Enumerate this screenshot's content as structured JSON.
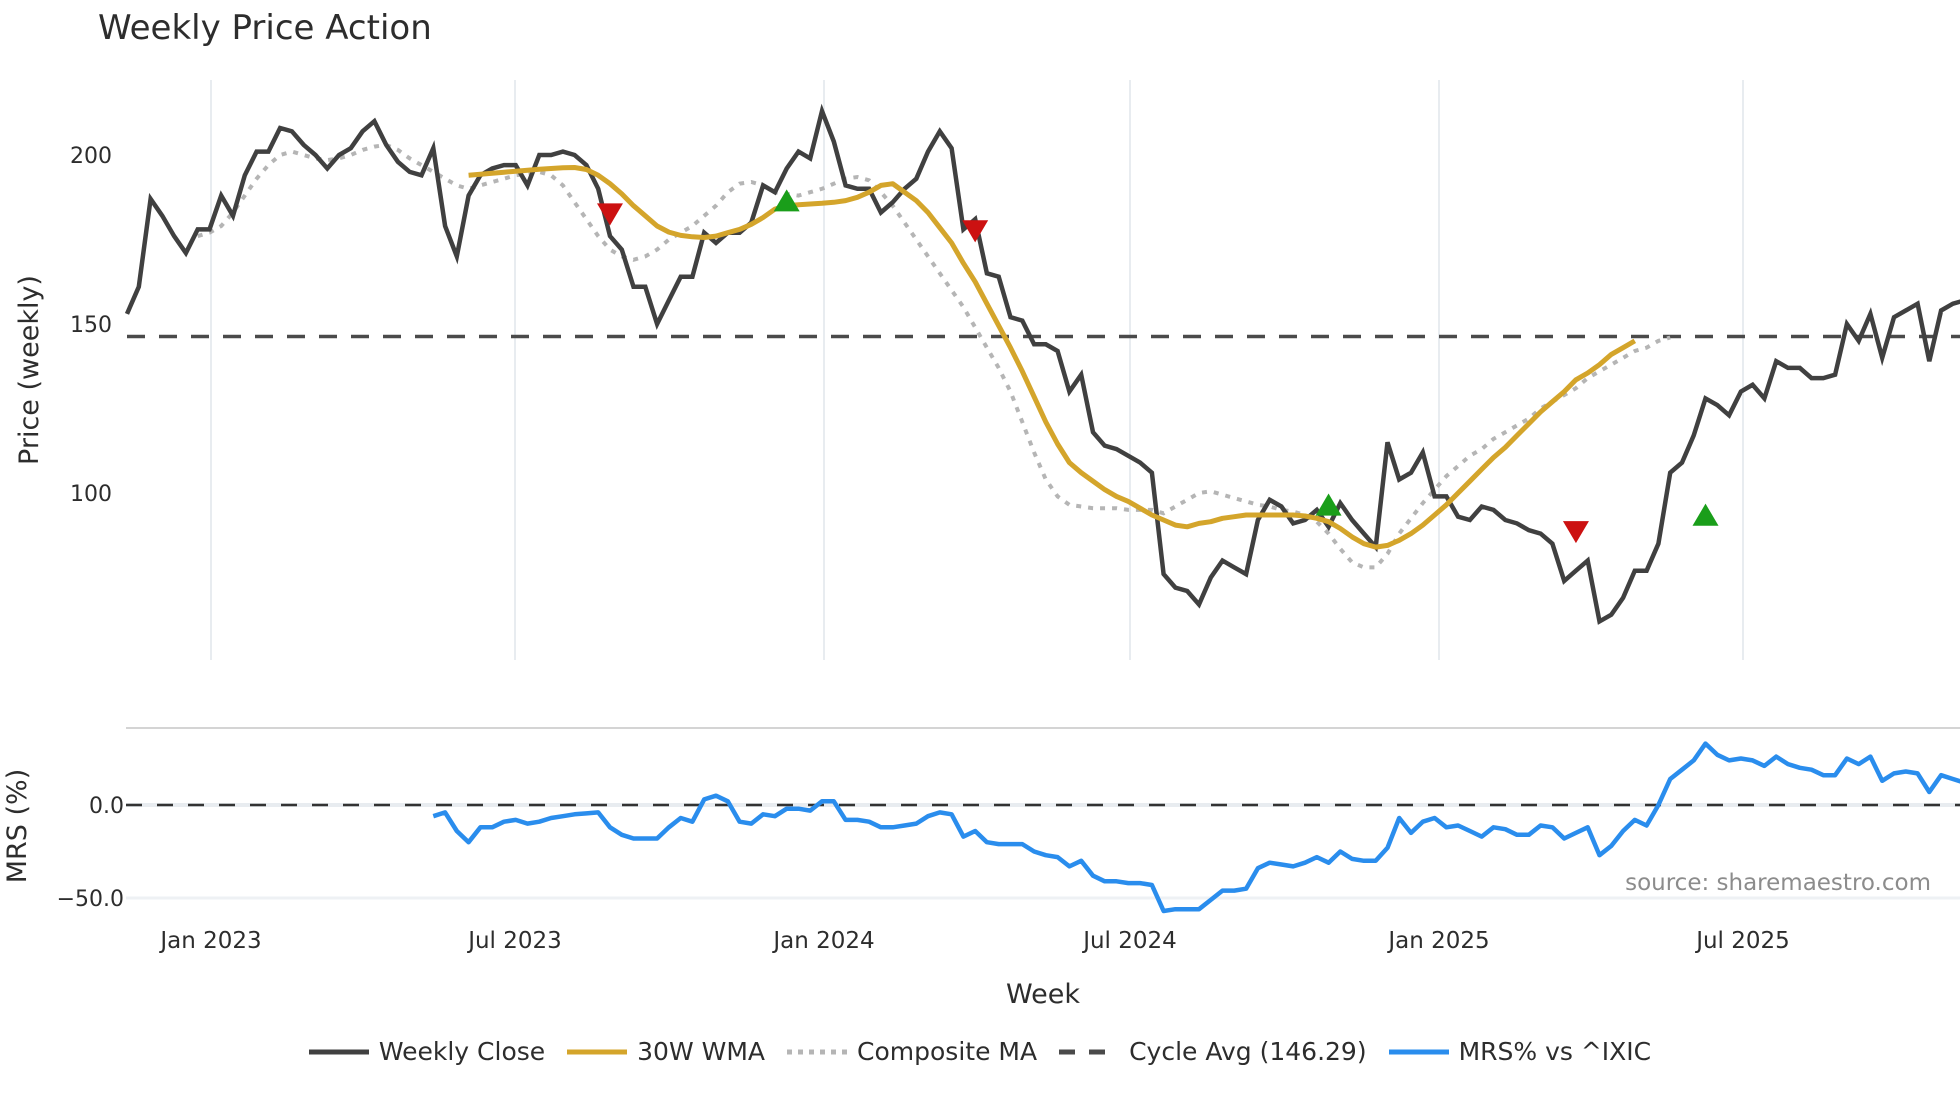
{
  "title": "Weekly Price Action",
  "source_note": "source: sharemaestro.com",
  "colors": {
    "weekly_close": "#404040",
    "wma30": "#d4a52b",
    "composite_ma": "#b5b5b5",
    "cycle_avg": "#4a4a4a",
    "mrs": "#2a8ded",
    "buy_marker": "#1a9e1a",
    "sell_marker": "#cc1111",
    "grid": "#e8ecf0"
  },
  "legend": [
    {
      "key": "weekly_close",
      "label": "Weekly Close",
      "style": "solid"
    },
    {
      "key": "wma30",
      "label": "30W WMA",
      "style": "solid"
    },
    {
      "key": "composite_ma",
      "label": "Composite MA",
      "style": "dotted"
    },
    {
      "key": "cycle_avg",
      "label": "Cycle Avg (146.29)",
      "style": "dashed"
    },
    {
      "key": "mrs",
      "label": "MRS% vs ^IXIC",
      "style": "solid"
    }
  ],
  "chart_data": [
    {
      "type": "line",
      "title": "Weekly Price Action",
      "xlabel": "Week",
      "ylabel": "Price (weekly)",
      "x_ticks": [
        "Jan 2023",
        "Jul 2023",
        "Jan 2024",
        "Jul 2024",
        "Jan 2025",
        "Jul 2025"
      ],
      "y_ticks": [
        100,
        150,
        200
      ],
      "ylim": [
        50,
        225
      ],
      "grid": true,
      "x_start": "2022-11-14",
      "x_step": "1 week",
      "cycle_avg": 146.29,
      "series": [
        {
          "name": "Weekly Close",
          "values": [
            153,
            161,
            187,
            182,
            176,
            171,
            178,
            178,
            188,
            182,
            194,
            201,
            201,
            208,
            207,
            203,
            200,
            196,
            200,
            202,
            207,
            210,
            203,
            198,
            195,
            194,
            202,
            179,
            170,
            188,
            194,
            196,
            197,
            197,
            191,
            200,
            200,
            201,
            200,
            197,
            190,
            176,
            172,
            161,
            161,
            150,
            157,
            164,
            164,
            177,
            174,
            177,
            177,
            180,
            191,
            189,
            196,
            201,
            199,
            213,
            204,
            191,
            190,
            190,
            183,
            186,
            190,
            193,
            201,
            207,
            202,
            178,
            181,
            165,
            164,
            152,
            151,
            144,
            144,
            142,
            130,
            135,
            118,
            114,
            113,
            111,
            109,
            106,
            76,
            72,
            71,
            67,
            75,
            80,
            78,
            76,
            92,
            98,
            96,
            91,
            92,
            95,
            90,
            97,
            92,
            88,
            84,
            115,
            104,
            106,
            112,
            99,
            99,
            93,
            92,
            96,
            95,
            92,
            91,
            89,
            88,
            85,
            74,
            77,
            80,
            62,
            64,
            69,
            77,
            77,
            85,
            106,
            109,
            117,
            128,
            126,
            123,
            130,
            132,
            128,
            139,
            137,
            137,
            134,
            134,
            135,
            150,
            145,
            153,
            140,
            152,
            154,
            156,
            139,
            154,
            156,
            157,
            152
          ]
        },
        {
          "name": "30W WMA",
          "start_index": 29,
          "values": [
            194,
            194.3,
            194.6,
            194.9,
            195.2,
            195.5,
            195.8,
            196,
            196.2,
            196.3,
            195.7,
            194,
            191.5,
            188.5,
            185,
            182,
            179,
            177.2,
            176.2,
            175.8,
            175.6,
            176,
            177,
            178,
            179.5,
            181.5,
            184,
            185,
            185.3,
            185.5,
            185.7,
            186,
            186.5,
            187.5,
            189,
            191,
            191.5,
            189,
            186.5,
            183,
            178.5,
            174,
            168,
            162.5,
            156,
            149.5,
            143,
            136,
            128.5,
            121,
            114.5,
            109,
            106,
            103.5,
            101,
            99,
            97.5,
            95.5,
            93.5,
            92,
            90.5,
            90,
            91,
            91.5,
            92.5,
            93,
            93.5,
            93.5,
            93.5,
            93.5,
            93.5,
            93.2,
            92.5,
            91.5,
            89.5,
            87,
            85,
            84,
            84.5,
            86,
            88,
            90.5,
            93.5,
            96.5,
            100,
            103.5,
            107,
            110.5,
            113.5,
            117,
            120.5,
            124,
            127,
            130,
            133.5,
            135.5,
            138,
            141,
            143,
            145
          ]
        },
        {
          "name": "Composite MA",
          "start_index": 6,
          "values": [
            176,
            177,
            179,
            183,
            188,
            193,
            197,
            200,
            201,
            200,
            199,
            198.5,
            199,
            200,
            201.5,
            202.5,
            203,
            201.5,
            199,
            197,
            195,
            193,
            191,
            190,
            191,
            192,
            193,
            194,
            194.5,
            195,
            194,
            191,
            186,
            181,
            176,
            172,
            170,
            169,
            170,
            172,
            175,
            177,
            179,
            182,
            185,
            189,
            191.5,
            192,
            191,
            189,
            188.5,
            188,
            189,
            190,
            191.5,
            193,
            193.5,
            192.5,
            189,
            185,
            180,
            175,
            170,
            165,
            160,
            155,
            149,
            143,
            137,
            130,
            121,
            112,
            104,
            99,
            96.5,
            96,
            95.5,
            95.5,
            95.5,
            95,
            95,
            95,
            94,
            96,
            98,
            100,
            100.5,
            99.5,
            98.5,
            97.5,
            96.5,
            96,
            95,
            94.5,
            93.5,
            91.5,
            88,
            83.5,
            79.5,
            78,
            78,
            82,
            88,
            92.5,
            97,
            101,
            105,
            108,
            111,
            113,
            116,
            118,
            120,
            122,
            125,
            127,
            129,
            131,
            134,
            136,
            138,
            140,
            142,
            143,
            145,
            146
          ]
        }
      ],
      "markers": [
        {
          "type": "sell",
          "index": 41,
          "value": 183
        },
        {
          "type": "buy",
          "index": 56,
          "value": 186
        },
        {
          "type": "sell",
          "index": 72,
          "value": 178
        },
        {
          "type": "buy",
          "index": 102,
          "value": 96
        },
        {
          "type": "sell",
          "index": 123,
          "value": 89
        },
        {
          "type": "buy",
          "index": 134,
          "value": 93
        }
      ]
    },
    {
      "type": "line",
      "title": "",
      "xlabel": "Week",
      "ylabel": "MRS (%)",
      "y_ticks": [
        -50.0,
        0.0
      ],
      "ylim": [
        -60,
        42
      ],
      "grid": true,
      "zero_line": 0.0,
      "series": [
        {
          "name": "MRS% vs ^IXIC",
          "start_index": 26,
          "values": [
            -6,
            -4,
            -14,
            -20,
            -12,
            -12,
            -9,
            -8,
            -10,
            -9,
            -7,
            -6,
            -5,
            -4.5,
            -4,
            -12,
            -16,
            -18,
            -18,
            -18,
            -12,
            -7,
            -9,
            3,
            5,
            2,
            -9,
            -10,
            -5,
            -6,
            -2,
            -2,
            -3,
            2,
            2,
            -8,
            -8,
            -9,
            -12,
            -12,
            -11,
            -10,
            -6,
            -4,
            -5,
            -17,
            -14,
            -20,
            -21,
            -21,
            -21,
            -25,
            -27,
            -28,
            -33,
            -30,
            -38,
            -41,
            -41,
            -42,
            -42,
            -43,
            -57,
            -56,
            -56,
            -56,
            -51,
            -46,
            -46,
            -45,
            -34,
            -31,
            -32,
            -33,
            -31,
            -28,
            -31,
            -25,
            -29,
            -30,
            -30,
            -23,
            -7,
            -15,
            -9,
            -7,
            -12,
            -11,
            -14,
            -17,
            -12,
            -13,
            -16,
            -16,
            -11,
            -12,
            -18,
            -15,
            -12,
            -27,
            -22,
            -14,
            -8,
            -11,
            0,
            14,
            19,
            24,
            33,
            27,
            24,
            25,
            24,
            21,
            26,
            22,
            20,
            19,
            16,
            16,
            25,
            22,
            26,
            13,
            17,
            18,
            17,
            7,
            16,
            14,
            12,
            11
          ]
        }
      ]
    }
  ]
}
